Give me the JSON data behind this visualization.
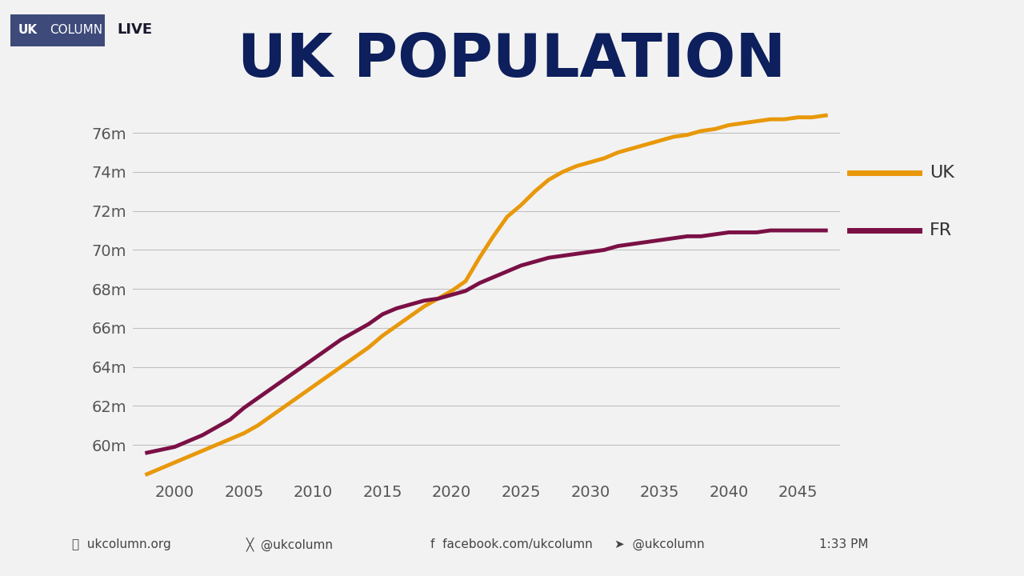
{
  "title": "UK POPULATION",
  "background_color": "#f2f2f2",
  "plot_bg_color": "#f2f2f2",
  "title_color": "#0d1f5c",
  "title_fontsize": 54,
  "title_fontweight": "bold",
  "uk_color": "#e8980a",
  "fr_color": "#7a1045",
  "line_width": 3.5,
  "ylim": [
    58.3,
    77.5
  ],
  "yticks": [
    60,
    62,
    64,
    66,
    68,
    70,
    72,
    74,
    76
  ],
  "ytick_labels": [
    "60m",
    "62m",
    "64m",
    "66m",
    "68m",
    "70m",
    "72m",
    "74m",
    "76m"
  ],
  "xticks": [
    2000,
    2005,
    2010,
    2015,
    2020,
    2025,
    2030,
    2035,
    2040,
    2045
  ],
  "xlim": [
    1997,
    2048
  ],
  "legend_uk": "UK",
  "legend_fr": "FR",
  "header_bg_color": "#3d4a7a",
  "header_uk_bold": true,
  "uk_x": [
    1998,
    1999,
    2000,
    2001,
    2002,
    2003,
    2004,
    2005,
    2006,
    2007,
    2008,
    2009,
    2010,
    2011,
    2012,
    2013,
    2014,
    2015,
    2016,
    2017,
    2018,
    2019,
    2020,
    2021,
    2022,
    2023,
    2024,
    2025,
    2026,
    2027,
    2028,
    2029,
    2030,
    2031,
    2032,
    2033,
    2034,
    2035,
    2036,
    2037,
    2038,
    2039,
    2040,
    2041,
    2042,
    2043,
    2044,
    2045,
    2046,
    2047
  ],
  "uk_y": [
    58.5,
    58.8,
    59.1,
    59.4,
    59.7,
    60.0,
    60.3,
    60.6,
    61.0,
    61.5,
    62.0,
    62.5,
    63.0,
    63.5,
    64.0,
    64.5,
    65.0,
    65.6,
    66.1,
    66.6,
    67.1,
    67.5,
    67.9,
    68.4,
    69.6,
    70.7,
    71.7,
    72.3,
    73.0,
    73.6,
    74.0,
    74.3,
    74.5,
    74.7,
    75.0,
    75.2,
    75.4,
    75.6,
    75.8,
    75.9,
    76.1,
    76.2,
    76.4,
    76.5,
    76.6,
    76.7,
    76.7,
    76.8,
    76.8,
    76.9
  ],
  "fr_x": [
    1998,
    1999,
    2000,
    2001,
    2002,
    2003,
    2004,
    2005,
    2006,
    2007,
    2008,
    2009,
    2010,
    2011,
    2012,
    2013,
    2014,
    2015,
    2016,
    2017,
    2018,
    2019,
    2020,
    2021,
    2022,
    2023,
    2024,
    2025,
    2026,
    2027,
    2028,
    2029,
    2030,
    2031,
    2032,
    2033,
    2034,
    2035,
    2036,
    2037,
    2038,
    2039,
    2040,
    2041,
    2042,
    2043,
    2044,
    2045,
    2046,
    2047
  ],
  "fr_y": [
    59.6,
    59.75,
    59.9,
    60.2,
    60.5,
    60.9,
    61.3,
    61.9,
    62.4,
    62.9,
    63.4,
    63.9,
    64.4,
    64.9,
    65.4,
    65.8,
    66.2,
    66.7,
    67.0,
    67.2,
    67.4,
    67.5,
    67.7,
    67.9,
    68.3,
    68.6,
    68.9,
    69.2,
    69.4,
    69.6,
    69.7,
    69.8,
    69.9,
    70.0,
    70.2,
    70.3,
    70.4,
    70.5,
    70.6,
    70.7,
    70.7,
    70.8,
    70.9,
    70.9,
    70.9,
    71.0,
    71.0,
    71.0,
    71.0,
    71.0
  ]
}
